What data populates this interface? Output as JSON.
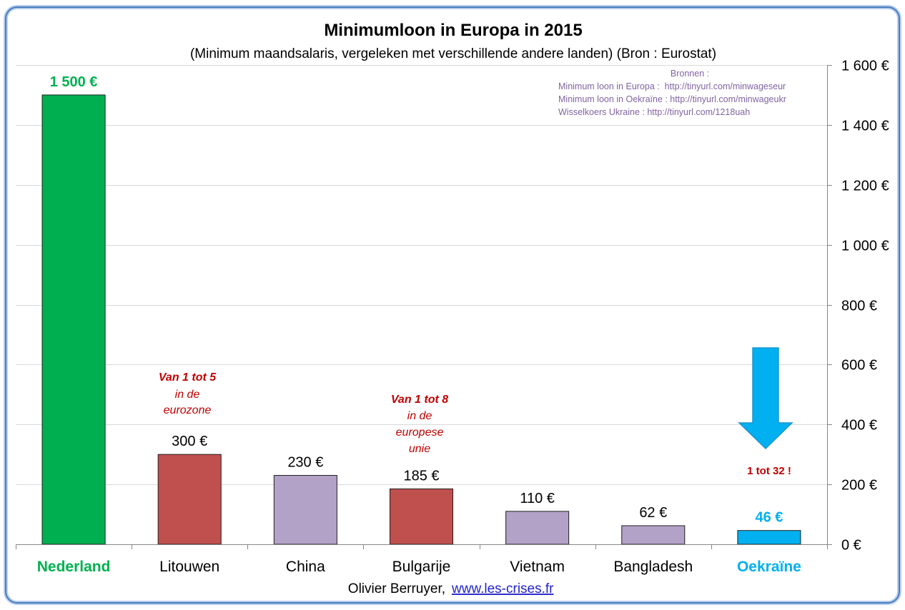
{
  "chart_data": {
    "type": "bar",
    "title": "Minimumloon in Europa in 2015",
    "subtitle": "(Minimum maandsalaris, vergeleken met verschillende andere landen) (Bron : Eurostat)",
    "categories": [
      "Nederland",
      "Litouwen",
      "China",
      "Bulgarije",
      "Vietnam",
      "Bangladesh",
      "Oekraïne"
    ],
    "values": [
      1500,
      300,
      230,
      185,
      110,
      62,
      46
    ],
    "data_labels": [
      "1 500 €",
      "300 €",
      "230 €",
      "185 €",
      "110 €",
      "62 €",
      "46 €"
    ],
    "bar_colors": [
      "#00b050",
      "#c0504d",
      "#b3a2c7",
      "#c0504d",
      "#b3a2c7",
      "#b3a2c7",
      "#00b0f0"
    ],
    "label_colors": [
      "#00b050",
      "#000000",
      "#000000",
      "#000000",
      "#000000",
      "#000000",
      "#00b0f0"
    ],
    "ylim": [
      0,
      1600
    ],
    "yticks": [
      0,
      200,
      400,
      600,
      800,
      1000,
      1200,
      1400,
      1600
    ],
    "ytick_labels": [
      "0 €",
      "200 €",
      "400 €",
      "600 €",
      "800 €",
      "1 000 €",
      "1 200 €",
      "1 400 €",
      "1 600 €"
    ],
    "y_axis_side": "right",
    "grid": true,
    "annotations": [
      {
        "lines": [
          "Van 1 tot 5",
          "in de",
          "eurozone"
        ]
      },
      {
        "lines": [
          "Van 1 tot 8",
          "in de",
          "europese",
          "unie"
        ]
      },
      {
        "lines": [
          "1 tot 32 !"
        ]
      }
    ],
    "annotation_color": "#c00000",
    "arrow_color": "#00b0f0"
  },
  "sources": {
    "heading": "Bronnen :",
    "lines": [
      "Minimum loon in Europa :  http://tinyurl.com/minwageseur",
      "Minimum loon in Oekraïne : http://tinyurl.com/minwageukr",
      "Wisselkoers Ukraine : http://tinyurl.com/1218uah"
    ],
    "color": "#8064a2"
  },
  "footer": {
    "author": "Olivier Berruyer,",
    "link": "www.les-crises.fr",
    "link_color": "#2222cc"
  }
}
